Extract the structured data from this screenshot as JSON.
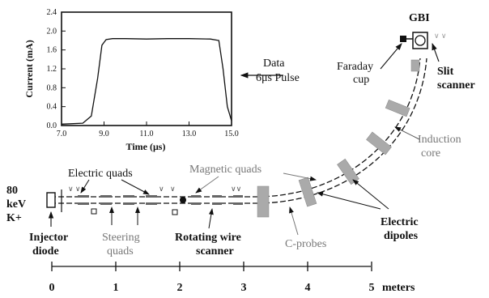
{
  "inset": {
    "ylabel": "Current (mA)",
    "xlabel": "Time (μs)",
    "yticks": [
      "2.4",
      "2.0",
      "1.6",
      "1.2",
      "0.8",
      "0.4",
      "0.0"
    ],
    "xticks": [
      "7.0",
      "9.0",
      "11.0",
      "13.0",
      "15.0"
    ]
  },
  "chart_data": {
    "type": "line",
    "xlabel": "Time (μs)",
    "ylabel": "Current (mA)",
    "xlim": [
      7.0,
      15.0
    ],
    "ylim": [
      0.0,
      2.4
    ],
    "x": [
      7.0,
      8.0,
      8.4,
      8.7,
      8.9,
      9.1,
      9.4,
      10.0,
      11.0,
      12.0,
      13.0,
      14.0,
      14.4,
      14.6,
      14.8,
      15.0
    ],
    "series": [
      {
        "values": [
          0.03,
          0.05,
          0.2,
          1.0,
          1.7,
          1.82,
          1.84,
          1.84,
          1.83,
          1.84,
          1.84,
          1.83,
          1.8,
          1.2,
          0.4,
          0.1
        ]
      }
    ]
  },
  "labels": {
    "data_line1": "Data",
    "data_line2": "6μs Pulse",
    "faraday_1": "Faraday",
    "faraday_2": "cup",
    "gbi": "GBI",
    "slit_1": "Slit",
    "slit_2": "scanner",
    "induction_1": "Induction",
    "induction_2": "core",
    "electric_quads": "Electric quads",
    "magnetic_quads": "Magnetic quads",
    "energy_1": "80",
    "energy_2": "keV",
    "energy_3": "K+",
    "injector_1": "Injector",
    "injector_2": "diode",
    "steering_1": "Steering",
    "steering_2": "quads",
    "rotating_1": "Rotating wire",
    "rotating_2": "scanner",
    "cprobes": "C-probes",
    "dipoles_1": "Electric",
    "dipoles_2": "dipoles"
  },
  "scale": {
    "ticks": [
      "0",
      "1",
      "2",
      "3",
      "4",
      "5"
    ],
    "unit": "meters"
  }
}
